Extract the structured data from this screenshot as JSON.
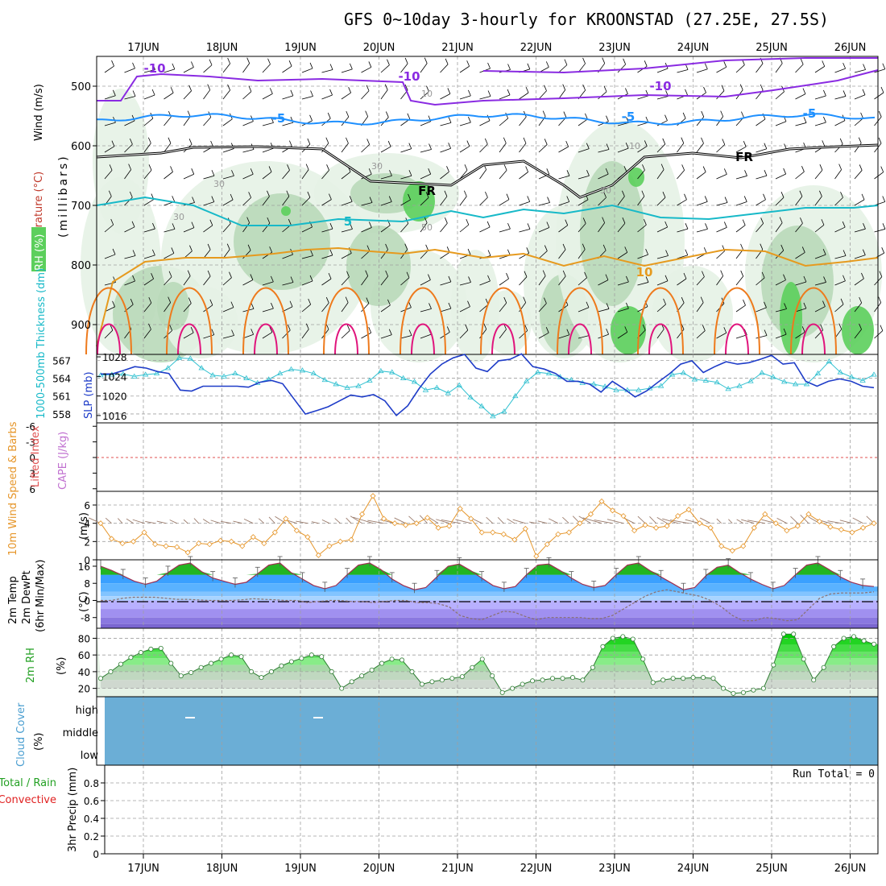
{
  "title": "GFS 0~10day 3-hourly for KROONSTAD (27.25E, 27.5S)",
  "day_labels": [
    "17JUN",
    "18JUN",
    "19JUN",
    "20JUN",
    "21JUN",
    "22JUN",
    "23JUN",
    "24JUN",
    "25JUN",
    "26JUN"
  ],
  "colors": {
    "rh_light": "#e6f2e6",
    "rh_mid": "#b9d9b9",
    "rh_dark": "#8fb89a",
    "rh_green": "#5ccf5c",
    "temp_purple": "#8a2be2",
    "temp_blue": "#1e90ff",
    "temp_cyan": "#17b9c8",
    "temp_orange": "#e69a1e",
    "temp_darkorange": "#ee7a1c",
    "temp_magenta": "#e0147c",
    "slp": "#1e3cc8",
    "thickness": "#30c0d0",
    "wind10": "#e6962a",
    "cloud": "#6baed6",
    "grid": "#a0a0a0"
  },
  "chart_data": [
    {
      "type": "contour",
      "panel": "upper_air",
      "ylabel_parts": [
        "Wind (m/s)",
        "Temperature (°C)",
        "RH (%)",
        "(millibars)"
      ],
      "y_ticks": [
        "500",
        "600",
        "700",
        "800",
        "900"
      ],
      "ylim_mb": [
        450,
        950
      ],
      "isotherm_labels": [
        "-10",
        "-10",
        "-10",
        "-5",
        "-5",
        "-5",
        "FR",
        "FR",
        "5",
        "10"
      ],
      "rh_labels": [
        "10",
        "10",
        "30",
        "30",
        "30",
        "50",
        "50"
      ]
    },
    {
      "type": "line",
      "panel": "pressure",
      "ylabel_left": "1000-500mb Thickness (dm)",
      "ylabel_right": "SLP (mb)",
      "left_ticks": [
        "567",
        "564",
        "561",
        "558"
      ],
      "right_ticks": [
        "1028",
        "1024",
        "1020",
        "1016"
      ],
      "thickness_range": [
        556.5,
        568
      ],
      "slp_range": [
        1014.5,
        1028.5
      ],
      "slp": [
        1024.5,
        1024.5,
        1025.2,
        1026.0,
        1025.7,
        1025.0,
        1024.6,
        1021.2,
        1021.0,
        1022.0,
        1022.0,
        1022.0,
        1022.0,
        1021.8,
        1022.8,
        1023.2,
        1022.5,
        1019.4,
        1016.3,
        1017.0,
        1017.8,
        1019.0,
        1020.2,
        1019.8,
        1020.3,
        1019.0,
        1016.0,
        1018.0,
        1021.5,
        1024.5,
        1026.5,
        1027.8,
        1028.5,
        1025.7,
        1025.0,
        1027.2,
        1027.5,
        1028.6,
        1026.0,
        1025.5,
        1024.6,
        1023.0,
        1023.0,
        1022.4,
        1020.8,
        1023.0,
        1021.5,
        1019.8,
        1021.0,
        1022.8,
        1024.5,
        1026.5,
        1027.2,
        1024.8,
        1026.0,
        1027.0,
        1026.5,
        1026.8,
        1027.5,
        1028.3,
        1026.5,
        1026.8,
        1023.0,
        1022.0,
        1023.0,
        1023.5,
        1023.0,
        1022.0,
        1021.7
      ],
      "thickness": [
        564.5,
        564.6,
        564.7,
        564.3,
        564.6,
        564.8,
        565.7,
        567.4,
        567.3,
        565.7,
        564.5,
        564.3,
        564.8,
        564.0,
        563.2,
        563.8,
        564.8,
        565.5,
        565.3,
        564.8,
        563.7,
        563.0,
        562.4,
        562.7,
        563.6,
        565.2,
        565.0,
        564.0,
        563.4,
        562.0,
        562.4,
        561.5,
        562.8,
        560.8,
        559.3,
        557.6,
        558.4,
        561.0,
        563.5,
        565.0,
        564.8,
        564.2,
        563.7,
        563.2,
        563.0,
        562.6,
        562.0,
        562.0,
        562.0,
        562.3,
        562.7,
        564.6,
        564.9,
        563.8,
        563.6,
        563.3,
        562.2,
        562.7,
        563.5,
        564.9,
        564.2,
        563.4,
        563.0,
        563.0,
        564.8,
        566.8,
        565.0,
        564.2,
        563.6,
        564.6
      ]
    },
    {
      "type": "line",
      "panel": "instability",
      "ylabel_left": "Lifted Index",
      "ylabel_right": "CAPE (J/kg)",
      "y_ticks": [
        "-6",
        "-3",
        "0",
        "3",
        "6"
      ]
    },
    {
      "type": "line",
      "panel": "wind10m",
      "ylabel_left": "10m Wind Speed & Barbs",
      "ylabel_right": "(m/s)",
      "y_ticks": [
        "6",
        "4",
        "2",
        "0"
      ],
      "ylim": [
        0,
        7.5
      ],
      "speed": [
        4.0,
        2.3,
        1.8,
        2.0,
        3.0,
        1.7,
        1.5,
        1.4,
        0.8,
        1.8,
        1.7,
        2.1,
        2.0,
        1.5,
        2.5,
        1.8,
        3.0,
        4.5,
        3.2,
        2.5,
        0.5,
        1.5,
        2.0,
        2.2,
        5.0,
        7.0,
        4.5,
        4.0,
        3.8,
        4.0,
        4.6,
        3.5,
        3.7,
        5.6,
        4.5,
        3.0,
        3.0,
        2.8,
        2.2,
        3.4,
        0.4,
        1.7,
        2.8,
        3.0,
        4.0,
        5.0,
        6.4,
        5.4,
        4.8,
        3.2,
        3.8,
        3.5,
        3.7,
        4.8,
        5.5,
        4.0,
        3.5,
        1.5,
        1.0,
        1.5,
        3.5,
        5.0,
        4.0,
        3.2,
        3.7,
        5.0,
        4.2,
        3.6,
        3.3,
        3.0,
        3.5,
        4.0
      ]
    },
    {
      "type": "area",
      "panel": "temperature",
      "ylabel_parts": [
        "2m Temp",
        "2m DewPt",
        "(6hr Min/Max)",
        "(°C)"
      ],
      "y_ticks": [
        "16",
        "8",
        "0",
        "-8"
      ],
      "ylim": [
        -13,
        19
      ],
      "temp": [
        16,
        14,
        11.5,
        9,
        7.5,
        9,
        13,
        16.5,
        17.5,
        13.5,
        10.5,
        9,
        7.5,
        8.5,
        12.5,
        16.5,
        17.5,
        13,
        10,
        7,
        5.5,
        7,
        12,
        16.5,
        17.5,
        14.5,
        10,
        7,
        5,
        6,
        11,
        16,
        17,
        14,
        10.5,
        7,
        5.5,
        6.5,
        12,
        16.5,
        17,
        14,
        10.5,
        7.5,
        6,
        7,
        12,
        16.5,
        17.5,
        14,
        11,
        8,
        5,
        6,
        11.5,
        15.5,
        16.5,
        13,
        10,
        7.5,
        5.5,
        7,
        12,
        16.5,
        17.5,
        14.5,
        11,
        8.5,
        7,
        6.5
      ],
      "dewpt": [
        0,
        0,
        1,
        1.5,
        1.5,
        1.5,
        1,
        0.5,
        0.5,
        0.2,
        0,
        0,
        0,
        0.3,
        0.8,
        0.5,
        0.3,
        0,
        0,
        -1,
        -0.5,
        0,
        0,
        -0.5,
        -0.5,
        -1,
        -0.5,
        0,
        0,
        -1,
        -1,
        -1.5,
        -3,
        -7,
        -8.5,
        -9,
        -7,
        -5,
        -5.5,
        -7.5,
        -9,
        -8,
        -8,
        -8,
        -8,
        -8.5,
        -8.5,
        -7,
        -4,
        -1,
        2,
        4,
        5,
        4,
        3,
        2,
        0,
        -3,
        -7,
        -9.5,
        -9.5,
        -8,
        -8.5,
        -9.5,
        -9,
        -4,
        1,
        3,
        3.5,
        3.5,
        3.5,
        4
      ]
    },
    {
      "type": "area",
      "panel": "humidity",
      "ylabel_left": "2m RH",
      "ylabel_right": "(%)",
      "y_ticks": [
        "80",
        "60",
        "40",
        "20"
      ],
      "ylim": [
        10,
        92
      ],
      "rh": [
        32,
        40,
        49,
        57,
        63,
        67,
        68,
        50,
        35,
        39,
        45,
        50,
        55,
        60,
        58,
        40,
        33,
        40,
        47,
        52,
        56,
        60,
        58,
        40,
        20,
        28,
        35,
        42,
        50,
        55,
        54,
        40,
        25,
        28,
        30,
        32,
        34,
        45,
        55,
        35,
        15,
        20,
        25,
        29,
        30,
        32,
        32,
        33,
        30,
        45,
        70,
        80,
        82,
        79,
        55,
        27,
        30,
        32,
        32,
        33,
        33,
        32,
        20,
        14,
        15,
        18,
        20,
        48,
        85,
        85,
        55,
        30,
        45,
        70,
        80,
        82,
        77,
        73
      ]
    },
    {
      "type": "heatmap",
      "panel": "cloud",
      "ylabel_left": "Cloud Cover",
      "ylabel_right": "(%)",
      "levels": [
        "high",
        "middle",
        "low"
      ],
      "cover_percent": 100
    },
    {
      "type": "bar",
      "panel": "precip",
      "ylabel_parts": [
        "Total / Rain",
        "Convective",
        "3hr Precip (mm)"
      ],
      "y_ticks": [
        "0.8",
        "0.6",
        "0.4",
        "0.2",
        "0"
      ],
      "ylim": [
        0,
        1
      ],
      "run_total": "Run Total = 0",
      "values": []
    }
  ]
}
